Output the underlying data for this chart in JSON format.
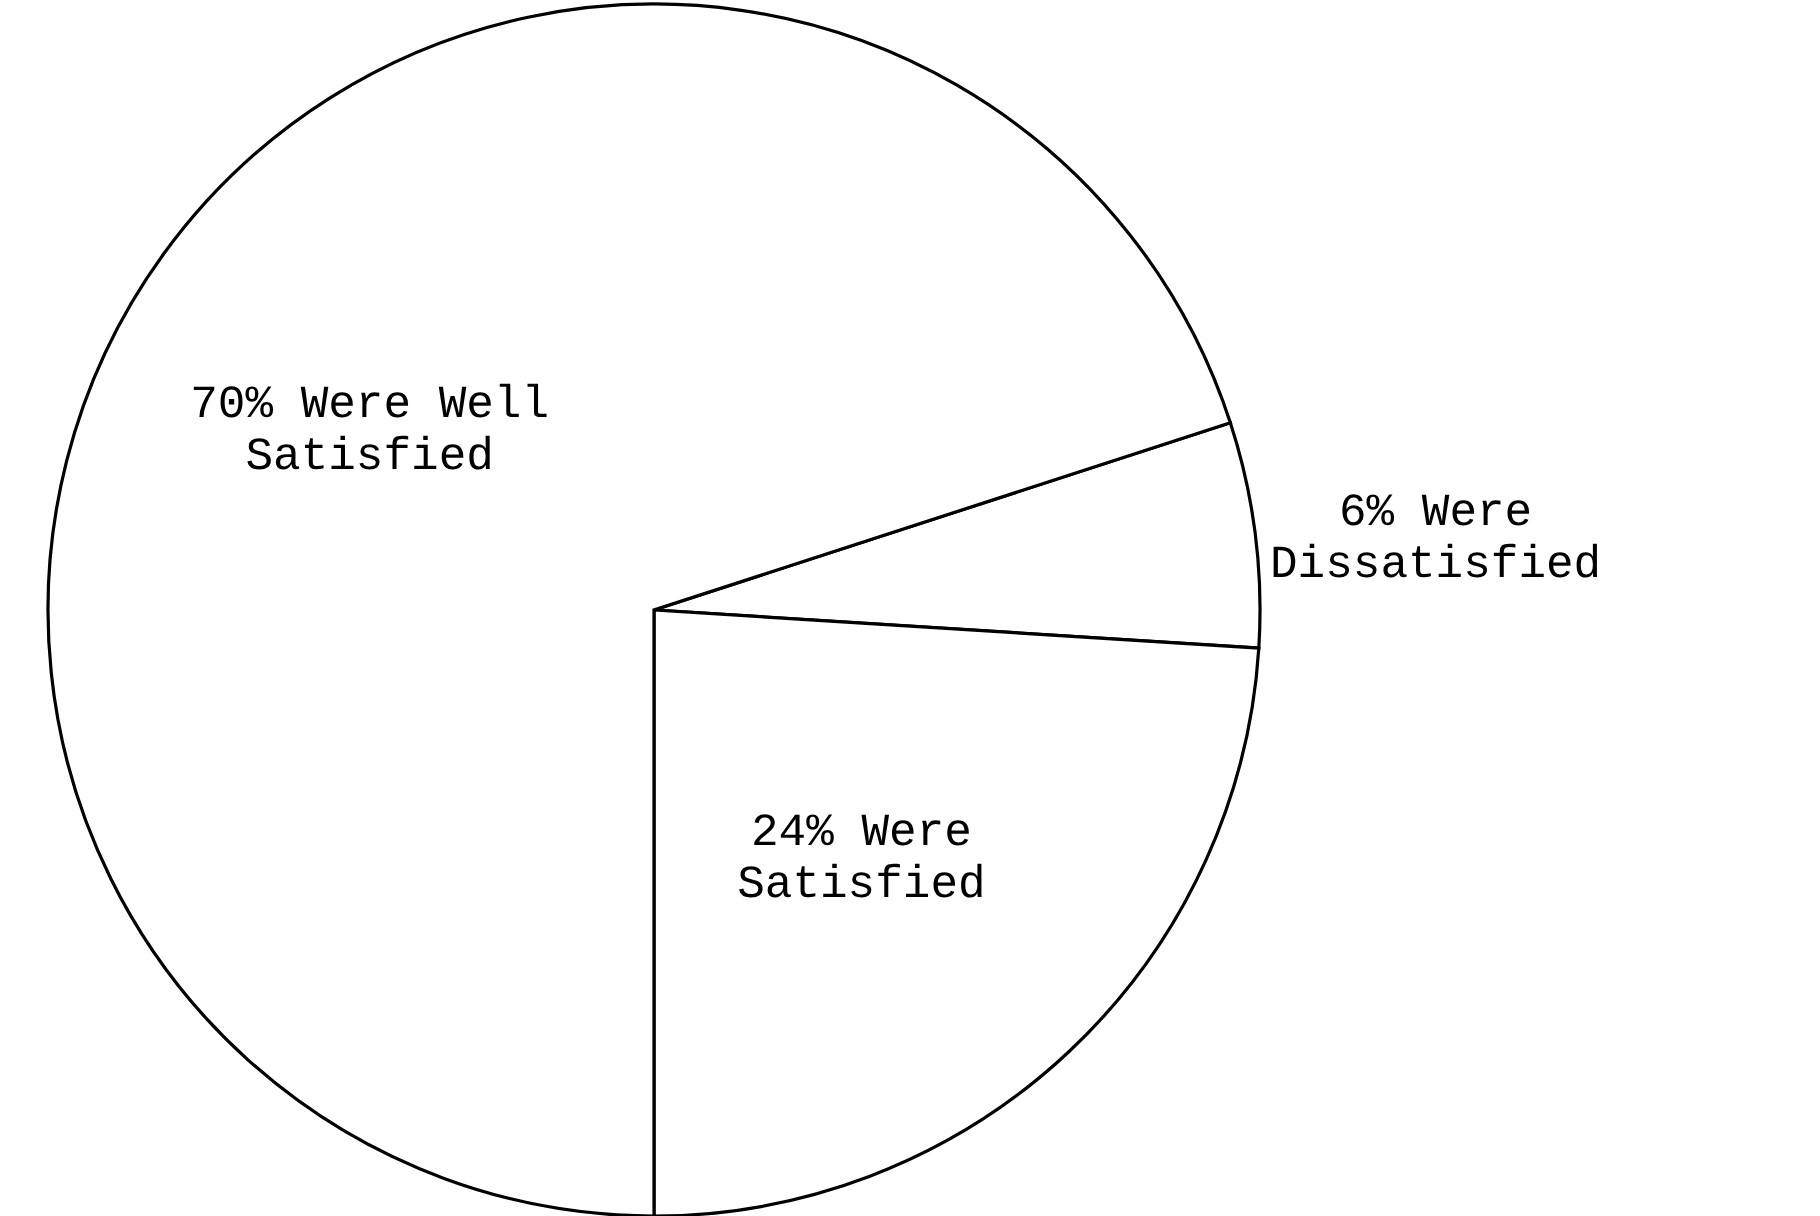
{
  "chart_data": {
    "type": "pie",
    "categories": [
      "Were Dissatisfied",
      "Were Satisfied",
      "Were Well Satisfied"
    ],
    "values": [
      6,
      24,
      70
    ],
    "value_labels": [
      "6%",
      "24%",
      "70%"
    ],
    "colors": [
      "#ffffff",
      "#ffffff",
      "#ffffff"
    ]
  }
}
